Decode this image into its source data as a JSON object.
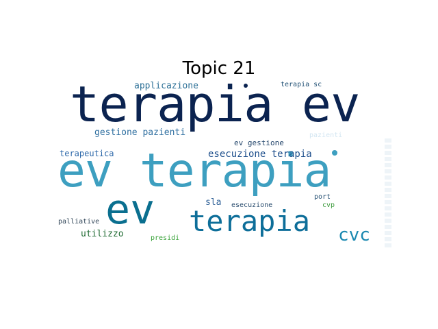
{
  "title": "Topic 21",
  "words": {
    "terapia_ev": {
      "text": "terapia ev",
      "color": "#0b2350"
    },
    "ev_terapia": {
      "text": "ev terapia",
      "color": "#3d9fc0"
    },
    "ev": {
      "text": "ev",
      "color": "#0a6f8f"
    },
    "terapia": {
      "text": "terapia",
      "color": "#0d6e99"
    },
    "cvc": {
      "text": "cvc",
      "color": "#1a88b0"
    },
    "applicazione": {
      "text": "applicazione",
      "color": "#2b6f96"
    },
    "terapia_sc": {
      "text": "terapia sc",
      "color": "#1e4e73"
    },
    "gestione_pazienti": {
      "text": "gestione pazienti",
      "color": "#2f6fa0"
    },
    "pazienti": {
      "text": "pazienti",
      "color": "#d3e6f2"
    },
    "ev_gestione": {
      "text": "ev gestione",
      "color": "#23456b"
    },
    "esecuzione_terapia": {
      "text": "esecuzione terapia",
      "color": "#1e4f8c"
    },
    "terapeutica": {
      "text": "terapeutica",
      "color": "#2a66a8"
    },
    "sla": {
      "text": "sla",
      "color": "#2d5f96"
    },
    "esecuzione": {
      "text": "esecuzione",
      "color": "#2a4d6e"
    },
    "port": {
      "text": "port",
      "color": "#2b5577"
    },
    "cvp": {
      "text": "cvp",
      "color": "#3c9a3c"
    },
    "palliative": {
      "text": "palliative",
      "color": "#2f4457"
    },
    "utilizzo": {
      "text": "utilizzo",
      "color": "#1f6b32"
    },
    "presidi": {
      "text": "presidi",
      "color": "#3aa33a"
    },
    "vertical_faint": {
      "text": "",
      "color": "#e6f0f5"
    }
  }
}
